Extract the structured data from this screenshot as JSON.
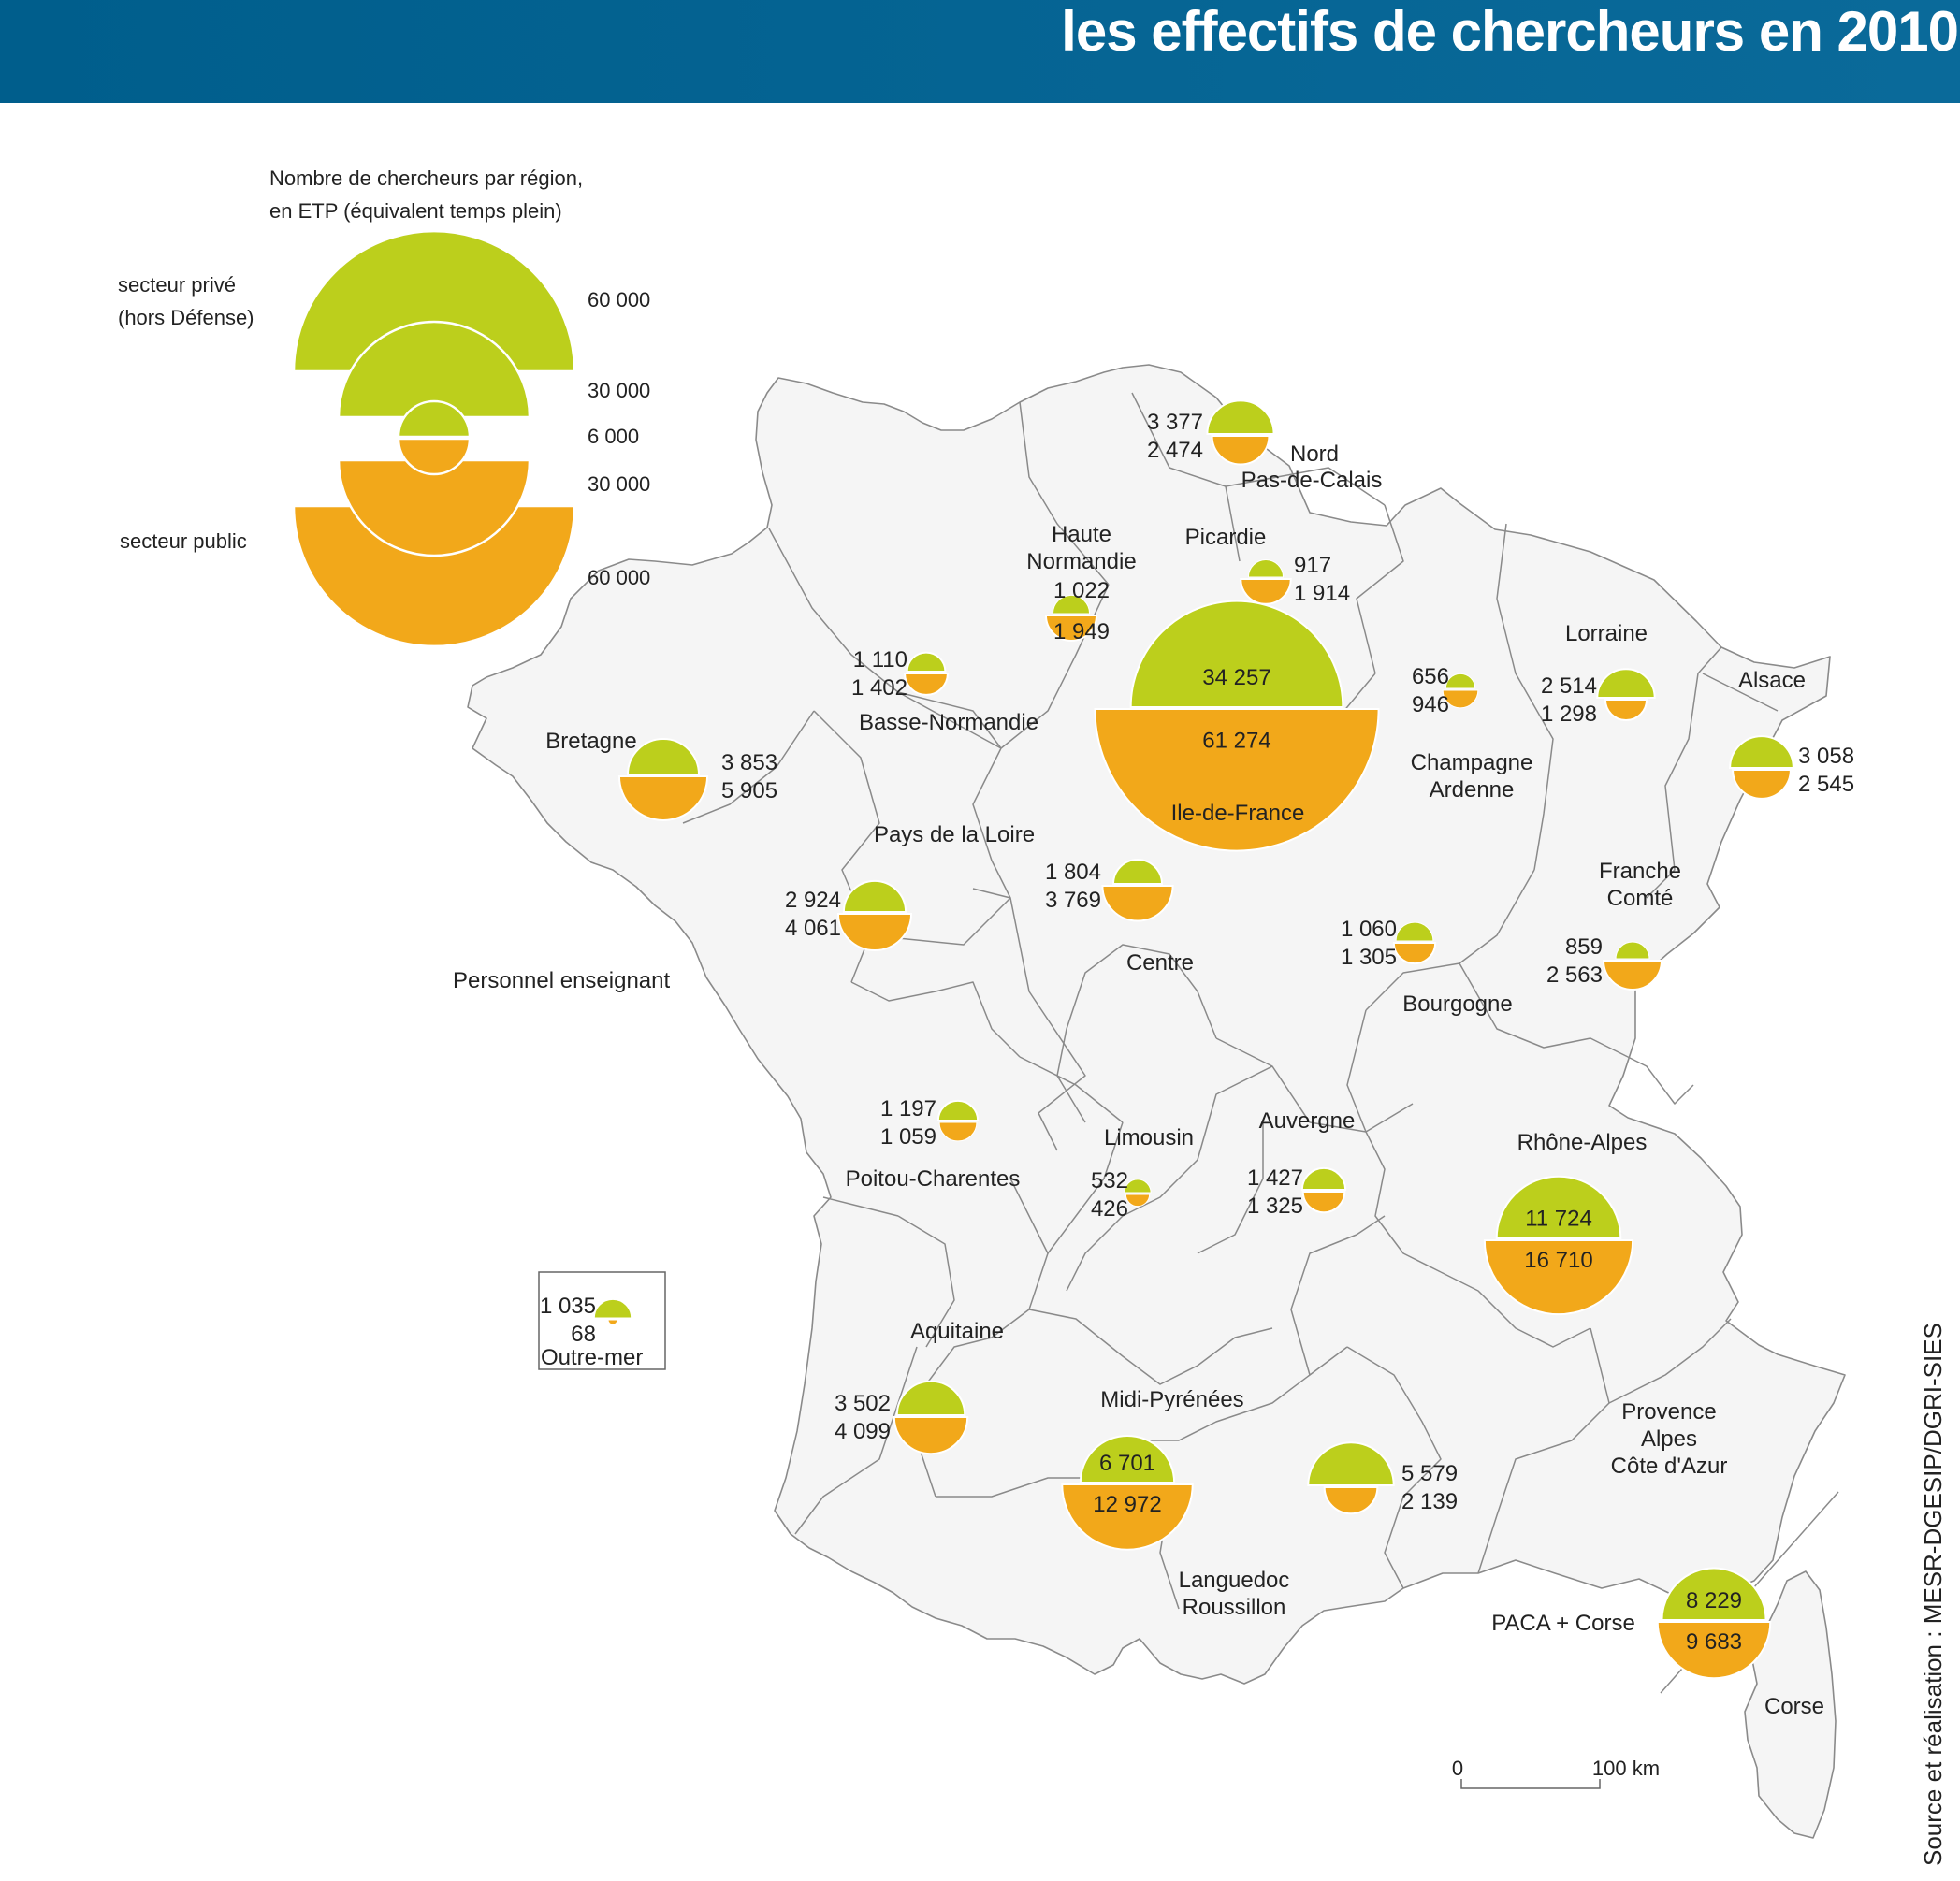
{
  "header": {
    "title": "les effectifs de chercheurs en 2010"
  },
  "colors": {
    "prive": "#bccf1c",
    "public": "#f2a81a",
    "land": "#f5f5f5",
    "border": "#8a8a8a",
    "header": "#005e8c"
  },
  "legend": {
    "title_line1": "Nombre de chercheurs par région,",
    "title_line2": "en ETP (équivalent temps plein)",
    "prive_line1": "secteur privé",
    "prive_line2": "(hors Défense)",
    "public_label": "secteur public",
    "scale": [
      {
        "label": "60 000",
        "value": 60000
      },
      {
        "label": "30 000",
        "value": 30000
      },
      {
        "label": "6 000",
        "value": 6000
      },
      {
        "label": "30 000",
        "value": 30000
      },
      {
        "label": "60 000",
        "value": 60000
      }
    ]
  },
  "chart_data": {
    "type": "proportional-semicircles",
    "title": "les effectifs de chercheurs en 2010",
    "unit": "ETP",
    "regions": [
      {
        "name": "Nord Pas-de-Calais",
        "prive_label": "3 377",
        "public_label": "2 474",
        "prive": 3377,
        "public": 2474
      },
      {
        "name": "Picardie",
        "prive_label": "917",
        "public_label": "1 914",
        "prive": 917,
        "public": 1914
      },
      {
        "name": "Haute Normandie",
        "prive_label": "1 022",
        "public_label": "1 949",
        "prive": 1022,
        "public": 1949
      },
      {
        "name": "Basse-Normandie",
        "prive_label": "1 110",
        "public_label": "1 402",
        "prive": 1110,
        "public": 1402
      },
      {
        "name": "Ile-de-France",
        "prive_label": "34 257",
        "public_label": "61 274",
        "prive": 34257,
        "public": 61274
      },
      {
        "name": "Champagne Ardenne",
        "prive_label": "656",
        "public_label": "946",
        "prive": 656,
        "public": 946
      },
      {
        "name": "Lorraine",
        "prive_label": "2 514",
        "public_label": "1 298",
        "prive": 2514,
        "public": 1298
      },
      {
        "name": "Alsace",
        "prive_label": "3 058",
        "public_label": "2 545",
        "prive": 3058,
        "public": 2545
      },
      {
        "name": "Bretagne",
        "prive_label": "3 853",
        "public_label": "5 905",
        "prive": 3853,
        "public": 5905
      },
      {
        "name": "Pays de la Loire",
        "prive_label": "2 924",
        "public_label": "4 061",
        "prive": 2924,
        "public": 4061
      },
      {
        "name": "Centre",
        "prive_label": "1 804",
        "public_label": "3 769",
        "prive": 1804,
        "public": 3769
      },
      {
        "name": "Bourgogne",
        "prive_label": "1 060",
        "public_label": "1 305",
        "prive": 1060,
        "public": 1305
      },
      {
        "name": "Franche Comté",
        "prive_label": "859",
        "public_label": "2 563",
        "prive": 859,
        "public": 2563
      },
      {
        "name": "Poitou-Charentes",
        "prive_label": "1 197",
        "public_label": "1 059",
        "prive": 1197,
        "public": 1059
      },
      {
        "name": "Limousin",
        "prive_label": "532",
        "public_label": "426",
        "prive": 532,
        "public": 426
      },
      {
        "name": "Auvergne",
        "prive_label": "1 427",
        "public_label": "1 325",
        "prive": 1427,
        "public": 1325
      },
      {
        "name": "Rhône-Alpes",
        "prive_label": "11 724",
        "public_label": "16 710",
        "prive": 11724,
        "public": 16710
      },
      {
        "name": "Aquitaine",
        "prive_label": "3 502",
        "public_label": "4 099",
        "prive": 3502,
        "public": 4099
      },
      {
        "name": "Midi-Pyrénées",
        "prive_label": "6 701",
        "public_label": "12 972",
        "prive": 6701,
        "public": 12972
      },
      {
        "name": "Languedoc Roussillon",
        "prive_label": "5 579",
        "public_label": "2 139",
        "prive": 5579,
        "public": 2139
      },
      {
        "name": "PACA + Corse",
        "prive_label": "8 229",
        "public_label": "9 683",
        "prive": 8229,
        "public": 9683
      },
      {
        "name": "Outre-mer",
        "prive_label": "1 035",
        "public_label": "68",
        "prive": 1035,
        "public": 68
      }
    ]
  },
  "labels": {
    "nord1": "Nord",
    "nord2": "Pas-de-Calais",
    "picardie": "Picardie",
    "hn1": "Haute",
    "hn2": "Normandie",
    "bn": "Basse-Normandie",
    "idf": "Ile-de-France",
    "champ1": "Champagne",
    "champ2": "Ardenne",
    "lorraine": "Lorraine",
    "alsace": "Alsace",
    "bretagne": "Bretagne",
    "pdl": "Pays de la Loire",
    "centre": "Centre",
    "bourgogne": "Bourgogne",
    "fc1": "Franche",
    "fc2": "Comté",
    "pc": "Poitou-Charentes",
    "limousin": "Limousin",
    "auvergne": "Auvergne",
    "ra": "Rhône-Alpes",
    "aquitaine": "Aquitaine",
    "mp": "Midi-Pyrénées",
    "lr1": "Languedoc",
    "lr2": "Roussillon",
    "paca1": "Provence",
    "paca2": "Alpes",
    "paca3": "Côte d'Azur",
    "pacacorse": "PACA + Corse",
    "corse": "Corse",
    "enseignant": "Personnel enseignant",
    "outremer": "Outre-mer"
  },
  "scale_bar": {
    "start": "0",
    "end": "100 km"
  },
  "source": "Source et réalisation : MESR-DGESIP/DGRI-SIES"
}
